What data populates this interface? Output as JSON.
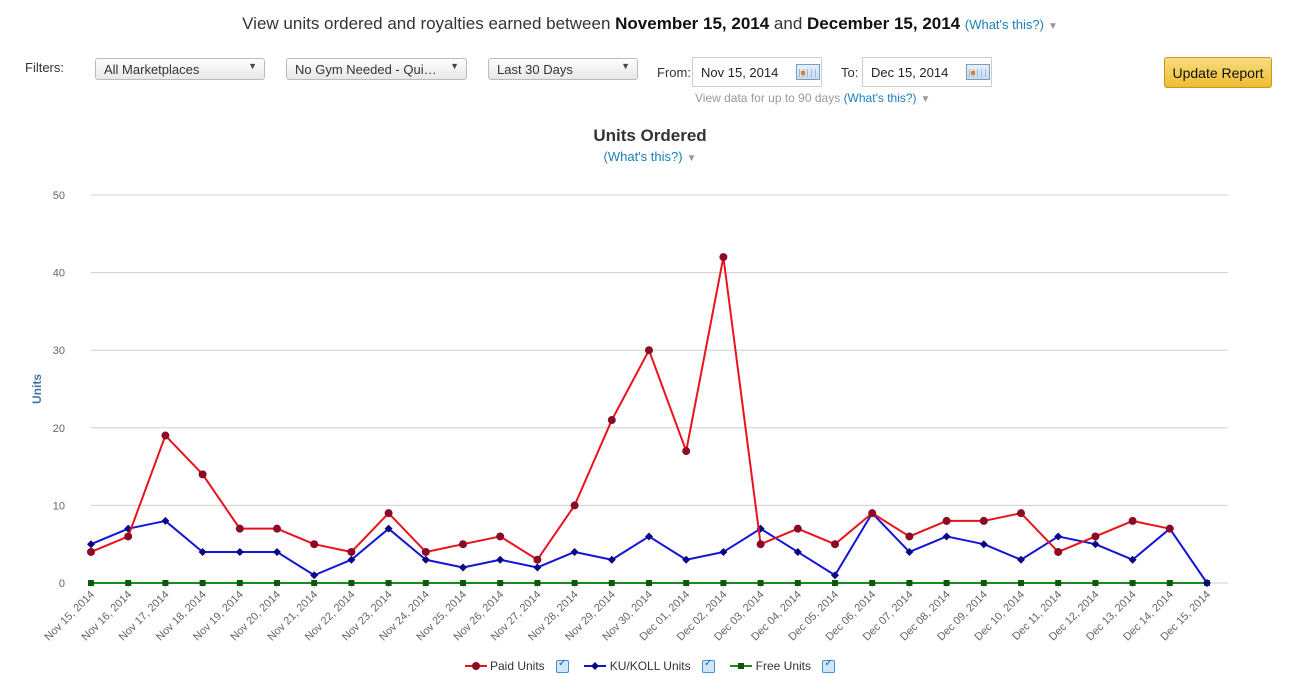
{
  "header": {
    "prefix": "View units ordered and royalties earned between",
    "start": "November 15, 2014",
    "joiner": "and",
    "end": "December 15, 2014",
    "whats_this": "(What's this?)"
  },
  "filters": {
    "label": "Filters:",
    "marketplace": "All Marketplaces",
    "title": "No Gym Needed - Qui…",
    "range": "Last 30 Days",
    "from_label": "From:",
    "from_value": "Nov 15, 2014",
    "to_label": "To:",
    "to_value": "Dec 15, 2014",
    "hint": "View data for up to 90 days",
    "hint_link": "(What's this?)",
    "update_button": "Update Report"
  },
  "chart_title": "Units Ordered",
  "chart_subtitle": "(What's this?)",
  "colors": {
    "paid": "#e8141c",
    "paid_marker": "#8b0a25",
    "ku": "#1414d8",
    "ku_marker": "#0a0a80",
    "free": "#1a8a1a",
    "free_marker": "#0b5a0b",
    "grid": "#d0d0d0",
    "axis_label": "#4572a7"
  },
  "chart_data": {
    "type": "line",
    "title": "Units Ordered",
    "xlabel": "",
    "ylabel": "Units",
    "ylim": [
      0,
      50
    ],
    "yticks": [
      0,
      10,
      20,
      30,
      40,
      50
    ],
    "grid": true,
    "legend_position": "bottom-center",
    "categories": [
      "Nov 15, 2014",
      "Nov 16, 2014",
      "Nov 17, 2014",
      "Nov 18, 2014",
      "Nov 19, 2014",
      "Nov 20, 2014",
      "Nov 21, 2014",
      "Nov 22, 2014",
      "Nov 23, 2014",
      "Nov 24, 2014",
      "Nov 25, 2014",
      "Nov 26, 2014",
      "Nov 27, 2014",
      "Nov 28, 2014",
      "Nov 29, 2014",
      "Nov 30, 2014",
      "Dec 01, 2014",
      "Dec 02, 2014",
      "Dec 03, 2014",
      "Dec 04, 2014",
      "Dec 05, 2014",
      "Dec 06, 2014",
      "Dec 07, 2014",
      "Dec 08, 2014",
      "Dec 09, 2014",
      "Dec 10, 2014",
      "Dec 11, 2014",
      "Dec 12, 2014",
      "Dec 13, 2014",
      "Dec 14, 2014",
      "Dec 15, 2014"
    ],
    "series": [
      {
        "name": "Paid Units",
        "key": "paid",
        "marker": "circle",
        "values": [
          4,
          6,
          19,
          14,
          7,
          7,
          5,
          4,
          9,
          4,
          5,
          6,
          3,
          10,
          21,
          30,
          17,
          42,
          5,
          7,
          5,
          9,
          6,
          8,
          8,
          9,
          4,
          6,
          8,
          7,
          null
        ]
      },
      {
        "name": "KU/KOLL Units",
        "key": "ku",
        "marker": "diamond",
        "values": [
          5,
          7,
          8,
          4,
          4,
          4,
          1,
          3,
          7,
          3,
          2,
          3,
          2,
          4,
          3,
          6,
          3,
          4,
          7,
          4,
          1,
          9,
          4,
          6,
          5,
          3,
          6,
          5,
          3,
          7,
          0
        ]
      },
      {
        "name": "Free Units",
        "key": "free",
        "marker": "square",
        "values": [
          0,
          0,
          0,
          0,
          0,
          0,
          0,
          0,
          0,
          0,
          0,
          0,
          0,
          0,
          0,
          0,
          0,
          0,
          0,
          0,
          0,
          0,
          0,
          0,
          0,
          0,
          0,
          0,
          0,
          0,
          0
        ]
      }
    ]
  }
}
